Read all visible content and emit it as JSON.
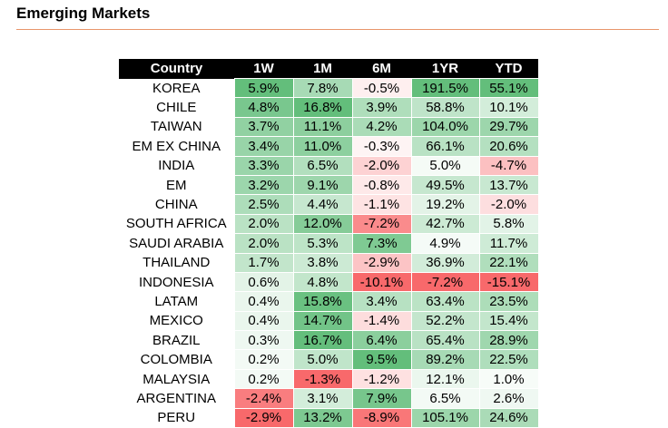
{
  "panel_title": "Emerging Markets",
  "chart_data": {
    "type": "table",
    "title": "Emerging Markets",
    "columns": [
      "Country",
      "1W",
      "1M",
      "6M",
      "1YR",
      "YTD"
    ],
    "rows": [
      {
        "country": "KOREA",
        "values": [
          5.9,
          7.8,
          -0.5,
          191.5,
          55.1
        ]
      },
      {
        "country": "CHILE",
        "values": [
          4.8,
          16.8,
          3.9,
          58.8,
          10.1
        ]
      },
      {
        "country": "TAIWAN",
        "values": [
          3.7,
          11.1,
          4.2,
          104.0,
          29.7
        ]
      },
      {
        "country": "EM EX CHINA",
        "values": [
          3.4,
          11.0,
          -0.3,
          66.1,
          20.6
        ]
      },
      {
        "country": "INDIA",
        "values": [
          3.3,
          6.5,
          -2.0,
          5.0,
          -4.7
        ]
      },
      {
        "country": "EM",
        "values": [
          3.2,
          9.1,
          -0.8,
          49.5,
          13.7
        ]
      },
      {
        "country": "CHINA",
        "values": [
          2.5,
          4.4,
          -1.1,
          19.2,
          -2.0
        ]
      },
      {
        "country": "SOUTH AFRICA",
        "values": [
          2.0,
          12.0,
          -7.2,
          42.7,
          5.8
        ]
      },
      {
        "country": "SAUDI ARABIA",
        "values": [
          2.0,
          5.3,
          7.3,
          4.9,
          11.7
        ]
      },
      {
        "country": "THAILAND",
        "values": [
          1.7,
          3.8,
          -2.9,
          36.9,
          22.1
        ]
      },
      {
        "country": "INDONESIA",
        "values": [
          0.6,
          4.8,
          -10.1,
          -7.2,
          -15.1
        ]
      },
      {
        "country": "LATAM",
        "values": [
          0.4,
          15.8,
          3.4,
          63.4,
          23.5
        ]
      },
      {
        "country": "MEXICO",
        "values": [
          0.4,
          14.7,
          -1.4,
          52.2,
          15.4
        ]
      },
      {
        "country": "BRAZIL",
        "values": [
          0.3,
          16.7,
          6.4,
          65.4,
          28.9
        ]
      },
      {
        "country": "COLOMBIA",
        "values": [
          0.2,
          5.0,
          9.5,
          89.2,
          22.5
        ]
      },
      {
        "country": "MALAYSIA",
        "values": [
          0.2,
          -1.3,
          -1.2,
          12.1,
          1.0
        ]
      },
      {
        "country": "ARGENTINA",
        "values": [
          -2.4,
          3.1,
          7.9,
          6.5,
          2.6
        ]
      },
      {
        "country": "PERU",
        "values": [
          -2.9,
          13.2,
          -8.9,
          105.1,
          24.6
        ]
      }
    ],
    "unit": "%",
    "colors": {
      "positive": "#63be7b",
      "negative": "#f8696b",
      "neutral": "#ffffff",
      "header_bg": "#000000",
      "header_text": "#ffffff",
      "rule": "#e8956a"
    }
  }
}
